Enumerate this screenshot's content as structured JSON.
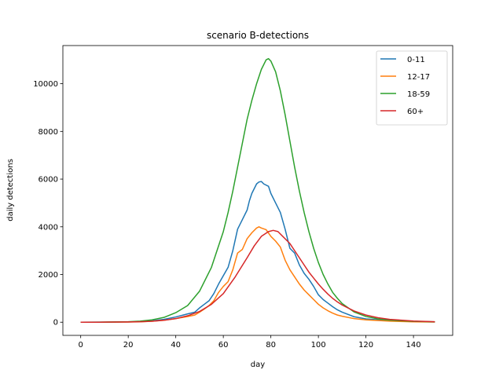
{
  "chart_data": {
    "type": "line",
    "title": "scenario B-detections",
    "xlabel": "day",
    "ylabel": "daily detections",
    "xlim": [
      -7.5,
      156.5
    ],
    "ylim": [
      -552,
      11600
    ],
    "xticks": [
      0,
      20,
      40,
      60,
      80,
      100,
      120,
      140
    ],
    "yticks": [
      0,
      2000,
      4000,
      6000,
      8000,
      10000
    ],
    "legend_position": "top-right",
    "grid": false,
    "series": [
      {
        "name": "0-11",
        "color": "#1f77b4",
        "points": [
          [
            0,
            0
          ],
          [
            10,
            3
          ],
          [
            20,
            10
          ],
          [
            25,
            25
          ],
          [
            30,
            60
          ],
          [
            35,
            120
          ],
          [
            40,
            220
          ],
          [
            45,
            350
          ],
          [
            48,
            420
          ],
          [
            50,
            600
          ],
          [
            52,
            750
          ],
          [
            54,
            900
          ],
          [
            56,
            1200
          ],
          [
            58,
            1600
          ],
          [
            60,
            1950
          ],
          [
            62,
            2300
          ],
          [
            64,
            3000
          ],
          [
            66,
            3900
          ],
          [
            68,
            4300
          ],
          [
            70,
            4700
          ],
          [
            71,
            5100
          ],
          [
            72,
            5400
          ],
          [
            74,
            5800
          ],
          [
            75,
            5880
          ],
          [
            76,
            5900
          ],
          [
            77,
            5800
          ],
          [
            79,
            5700
          ],
          [
            80,
            5400
          ],
          [
            82,
            5000
          ],
          [
            84,
            4600
          ],
          [
            86,
            3900
          ],
          [
            87,
            3500
          ],
          [
            88,
            3100
          ],
          [
            90,
            2900
          ],
          [
            92,
            2400
          ],
          [
            94,
            2050
          ],
          [
            96,
            1800
          ],
          [
            98,
            1500
          ],
          [
            100,
            1150
          ],
          [
            102,
            950
          ],
          [
            104,
            800
          ],
          [
            106,
            650
          ],
          [
            108,
            520
          ],
          [
            110,
            420
          ],
          [
            115,
            230
          ],
          [
            120,
            140
          ],
          [
            130,
            60
          ],
          [
            140,
            25
          ],
          [
            149,
            10
          ]
        ]
      },
      {
        "name": "12-17",
        "color": "#ff7f0e",
        "points": [
          [
            0,
            0
          ],
          [
            10,
            2
          ],
          [
            20,
            7
          ],
          [
            25,
            18
          ],
          [
            30,
            40
          ],
          [
            35,
            80
          ],
          [
            40,
            150
          ],
          [
            45,
            240
          ],
          [
            48,
            300
          ],
          [
            50,
            420
          ],
          [
            52,
            550
          ],
          [
            54,
            700
          ],
          [
            56,
            900
          ],
          [
            58,
            1250
          ],
          [
            60,
            1500
          ],
          [
            62,
            1700
          ],
          [
            64,
            2200
          ],
          [
            66,
            2900
          ],
          [
            68,
            3050
          ],
          [
            70,
            3500
          ],
          [
            72,
            3750
          ],
          [
            74,
            3950
          ],
          [
            75,
            4000
          ],
          [
            76,
            3950
          ],
          [
            78,
            3880
          ],
          [
            80,
            3600
          ],
          [
            82,
            3400
          ],
          [
            84,
            3150
          ],
          [
            86,
            2600
          ],
          [
            88,
            2200
          ],
          [
            90,
            1900
          ],
          [
            92,
            1600
          ],
          [
            94,
            1350
          ],
          [
            96,
            1150
          ],
          [
            98,
            950
          ],
          [
            100,
            750
          ],
          [
            102,
            600
          ],
          [
            104,
            480
          ],
          [
            106,
            380
          ],
          [
            108,
            300
          ],
          [
            110,
            250
          ],
          [
            115,
            150
          ],
          [
            120,
            100
          ],
          [
            130,
            45
          ],
          [
            140,
            18
          ],
          [
            149,
            6
          ]
        ]
      },
      {
        "name": "18-59",
        "color": "#2ca02c",
        "points": [
          [
            0,
            0
          ],
          [
            10,
            5
          ],
          [
            20,
            20
          ],
          [
            25,
            45
          ],
          [
            30,
            100
          ],
          [
            35,
            200
          ],
          [
            40,
            400
          ],
          [
            45,
            700
          ],
          [
            50,
            1300
          ],
          [
            55,
            2300
          ],
          [
            60,
            3800
          ],
          [
            62,
            4600
          ],
          [
            64,
            5500
          ],
          [
            66,
            6500
          ],
          [
            68,
            7500
          ],
          [
            70,
            8500
          ],
          [
            72,
            9300
          ],
          [
            74,
            10000
          ],
          [
            76,
            10600
          ],
          [
            78,
            11000
          ],
          [
            79,
            11050
          ],
          [
            80,
            10950
          ],
          [
            82,
            10500
          ],
          [
            84,
            9700
          ],
          [
            86,
            8700
          ],
          [
            88,
            7600
          ],
          [
            90,
            6500
          ],
          [
            92,
            5500
          ],
          [
            94,
            4600
          ],
          [
            96,
            3800
          ],
          [
            98,
            3100
          ],
          [
            100,
            2500
          ],
          [
            102,
            2000
          ],
          [
            104,
            1600
          ],
          [
            106,
            1250
          ],
          [
            108,
            1000
          ],
          [
            110,
            780
          ],
          [
            115,
            430
          ],
          [
            120,
            240
          ],
          [
            125,
            140
          ],
          [
            130,
            85
          ],
          [
            140,
            35
          ],
          [
            149,
            15
          ]
        ]
      },
      {
        "name": "60+",
        "color": "#d62728",
        "points": [
          [
            0,
            0
          ],
          [
            10,
            2
          ],
          [
            20,
            10
          ],
          [
            25,
            20
          ],
          [
            30,
            40
          ],
          [
            35,
            80
          ],
          [
            40,
            150
          ],
          [
            45,
            270
          ],
          [
            50,
            450
          ],
          [
            55,
            750
          ],
          [
            60,
            1200
          ],
          [
            65,
            1900
          ],
          [
            70,
            2700
          ],
          [
            73,
            3200
          ],
          [
            76,
            3600
          ],
          [
            79,
            3800
          ],
          [
            81,
            3850
          ],
          [
            83,
            3800
          ],
          [
            85,
            3600
          ],
          [
            88,
            3300
          ],
          [
            90,
            3000
          ],
          [
            92,
            2700
          ],
          [
            94,
            2400
          ],
          [
            96,
            2100
          ],
          [
            98,
            1850
          ],
          [
            100,
            1600
          ],
          [
            102,
            1380
          ],
          [
            104,
            1180
          ],
          [
            106,
            1000
          ],
          [
            108,
            850
          ],
          [
            110,
            720
          ],
          [
            115,
            470
          ],
          [
            120,
            300
          ],
          [
            125,
            190
          ],
          [
            130,
            120
          ],
          [
            140,
            50
          ],
          [
            149,
            20
          ]
        ]
      }
    ]
  }
}
